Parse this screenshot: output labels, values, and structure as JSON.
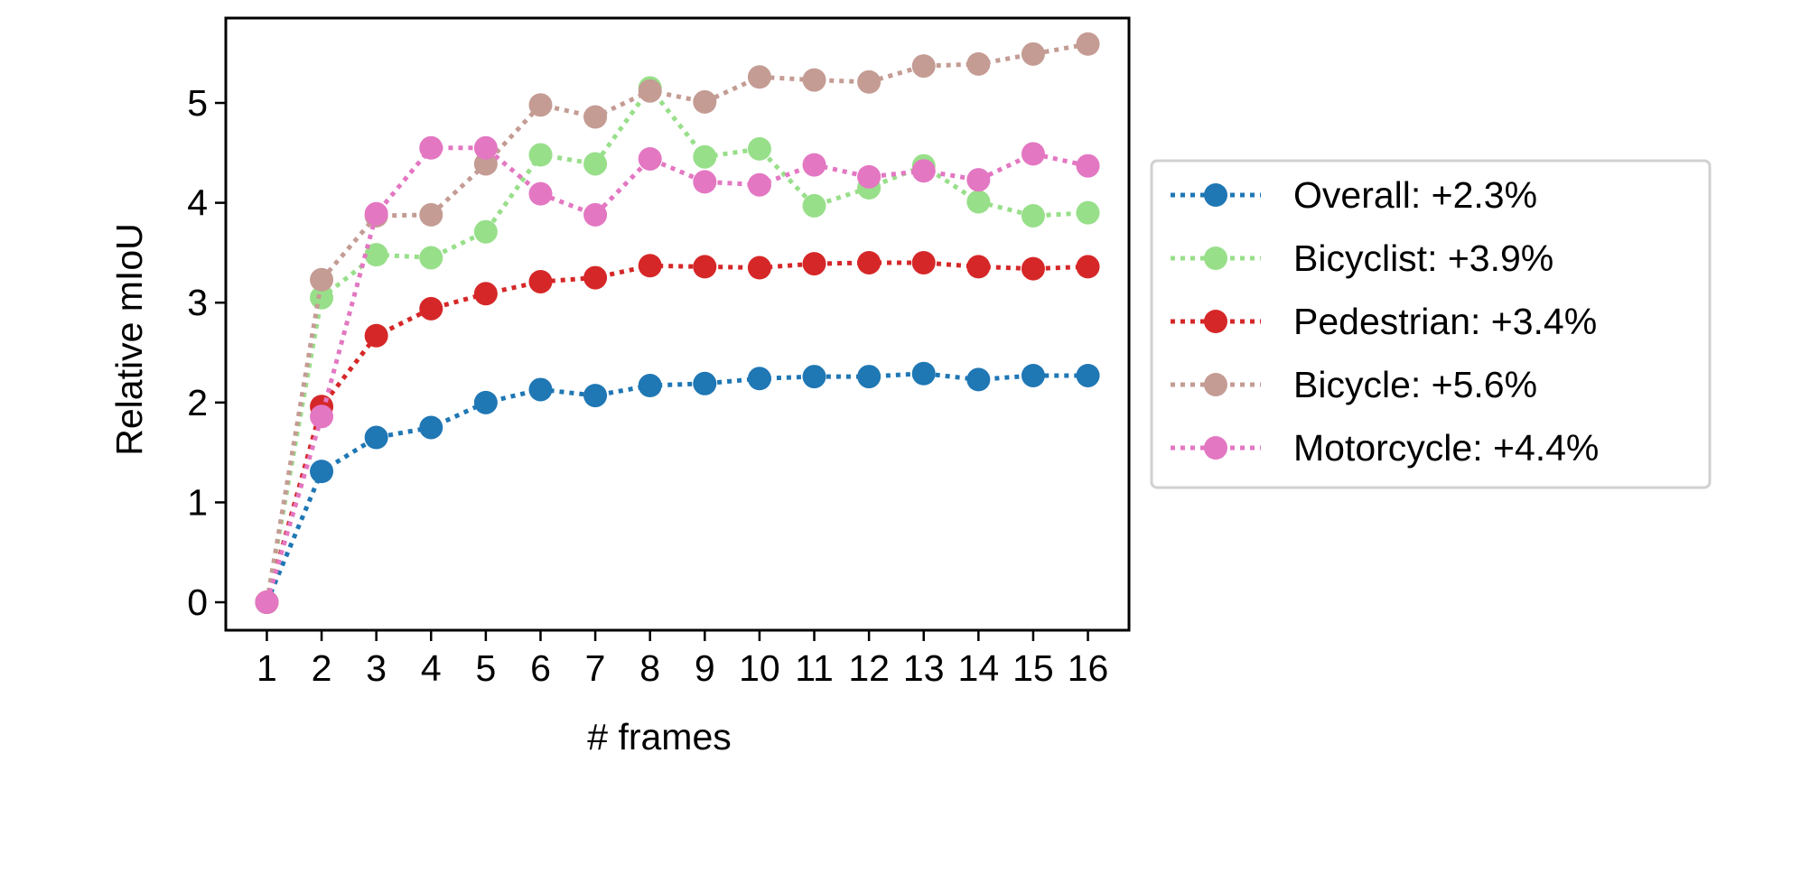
{
  "chart_data": {
    "type": "line",
    "xlabel": "# frames",
    "ylabel": "Relative mIoU",
    "xlim": [
      0.25,
      16.75
    ],
    "ylim": [
      -0.28,
      5.85
    ],
    "x": [
      1,
      2,
      3,
      4,
      5,
      6,
      7,
      8,
      9,
      10,
      11,
      12,
      13,
      14,
      15,
      16
    ],
    "x_tick_labels": [
      "1",
      "2",
      "3",
      "4",
      "5",
      "6",
      "7",
      "8",
      "9",
      "10",
      "11",
      "12",
      "13",
      "14",
      "15",
      "16"
    ],
    "y_ticks": [
      0,
      1,
      2,
      3,
      4,
      5
    ],
    "y_tick_labels": [
      "0",
      "1",
      "2",
      "3",
      "4",
      "5"
    ],
    "line_style": "dotted",
    "marker": "circle",
    "grid": false,
    "legend_position": "outside-right",
    "series": [
      {
        "name": "Overall: +2.3%",
        "color": "#1f77b4",
        "values": [
          0.0,
          1.31,
          1.65,
          1.75,
          2.0,
          2.13,
          2.07,
          2.17,
          2.19,
          2.24,
          2.26,
          2.26,
          2.29,
          2.23,
          2.27,
          2.27
        ]
      },
      {
        "name": "Bicyclist: +3.9%",
        "color": "#98df8a",
        "values": [
          0.0,
          3.05,
          3.48,
          3.45,
          3.71,
          4.48,
          4.39,
          5.15,
          4.46,
          4.54,
          3.97,
          4.15,
          4.37,
          4.01,
          3.87,
          3.9
        ]
      },
      {
        "name": "Pedestrian: +3.4%",
        "color": "#d62728",
        "values": [
          0.0,
          1.96,
          2.67,
          2.94,
          3.09,
          3.21,
          3.25,
          3.37,
          3.36,
          3.35,
          3.39,
          3.4,
          3.4,
          3.36,
          3.34,
          3.36
        ]
      },
      {
        "name": "Bicycle: +5.6%",
        "color": "#c49c94",
        "values": [
          0.0,
          3.23,
          3.87,
          3.88,
          4.39,
          4.98,
          4.86,
          5.12,
          5.01,
          5.26,
          5.23,
          5.21,
          5.37,
          5.39,
          5.49,
          5.59
        ]
      },
      {
        "name": "Motorcycle: +4.4%",
        "color": "#e377c2",
        "values": [
          0.0,
          1.86,
          3.89,
          4.55,
          4.55,
          4.09,
          3.88,
          4.44,
          4.21,
          4.18,
          4.38,
          4.26,
          4.32,
          4.23,
          4.49,
          4.37
        ]
      }
    ]
  }
}
